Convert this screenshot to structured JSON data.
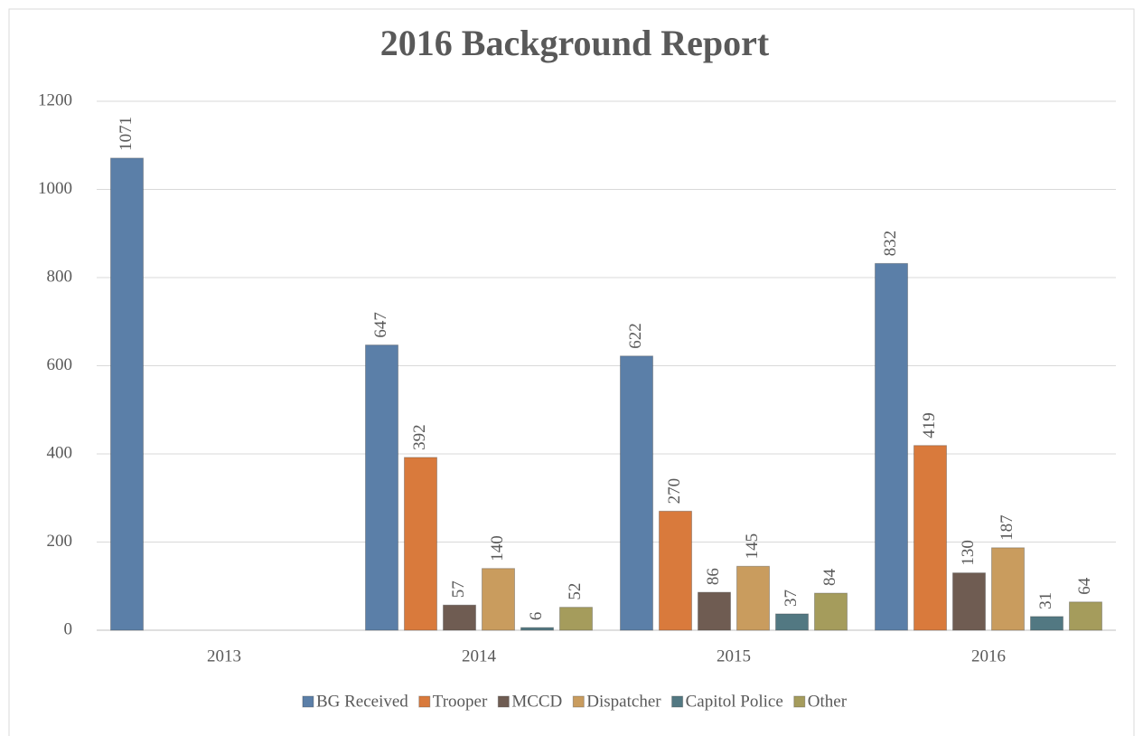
{
  "chart_data": {
    "type": "bar",
    "title": "2016 Background Report",
    "categories": [
      "2013",
      "2014",
      "2015",
      "2016"
    ],
    "series": [
      {
        "name": "BG Received",
        "color": "#5b7fa8",
        "values": [
          1071,
          647,
          622,
          832
        ]
      },
      {
        "name": "Trooper",
        "color": "#d97a3c",
        "values": [
          null,
          392,
          270,
          419
        ]
      },
      {
        "name": "MCCD",
        "color": "#6f5c52",
        "values": [
          null,
          57,
          86,
          130
        ]
      },
      {
        "name": "Dispatcher",
        "color": "#c99c5e",
        "values": [
          null,
          140,
          145,
          187
        ]
      },
      {
        "name": "Capitol Police",
        "color": "#527882",
        "values": [
          null,
          6,
          37,
          31
        ]
      },
      {
        "name": "Other",
        "color": "#a59c5c",
        "values": [
          null,
          52,
          84,
          64
        ]
      }
    ],
    "ylim": [
      0,
      1200
    ],
    "yticks": [
      0,
      200,
      400,
      600,
      800,
      1000,
      1200
    ],
    "grid": true,
    "legend": "bottom"
  }
}
